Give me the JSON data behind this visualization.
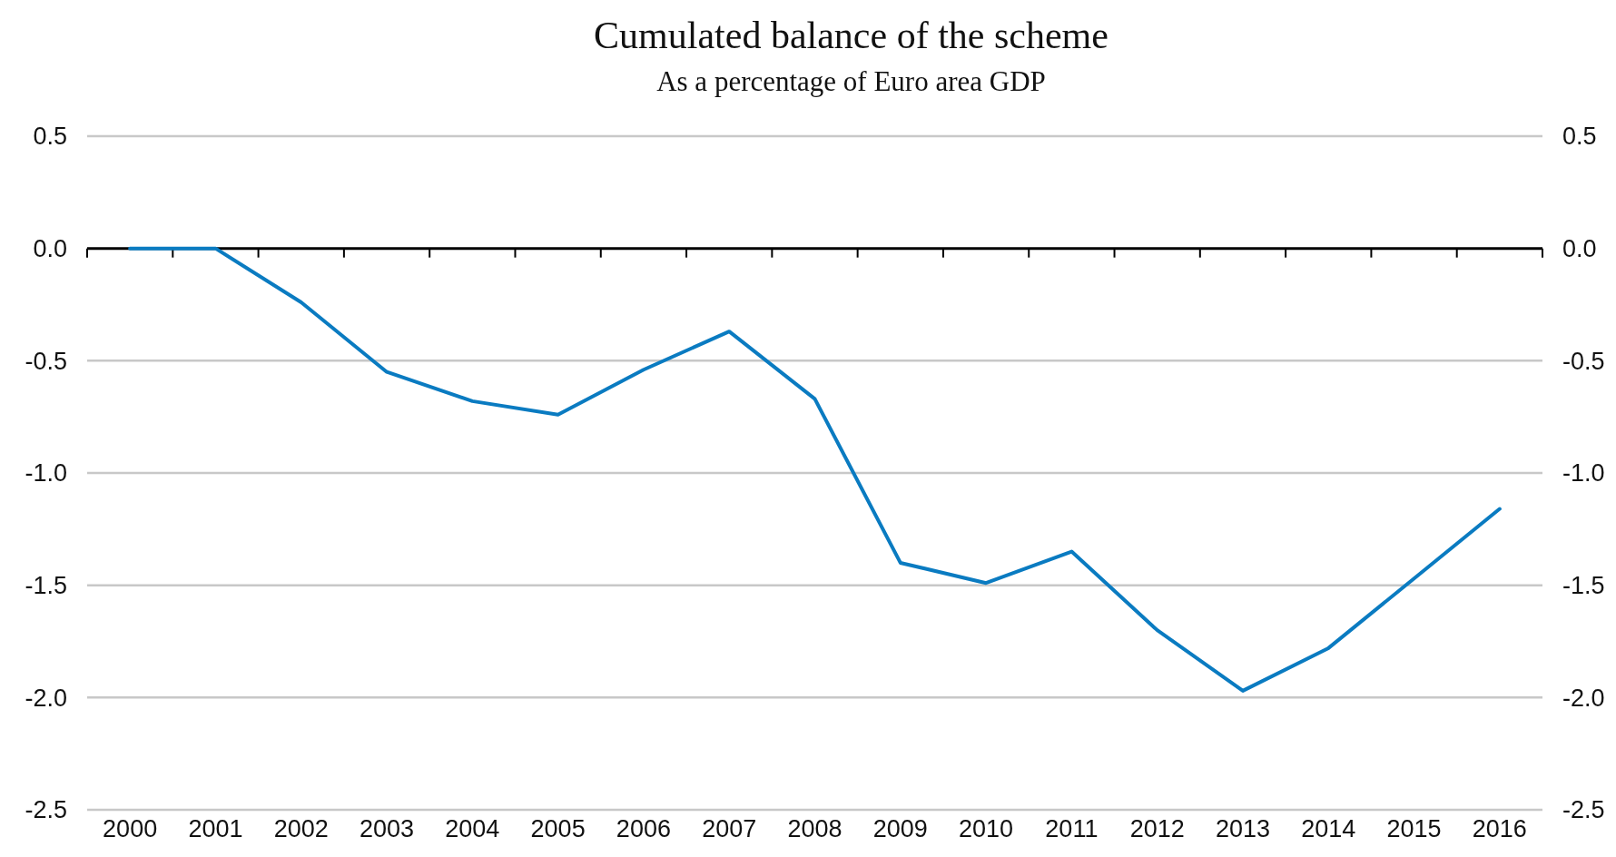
{
  "chart_data": {
    "type": "line",
    "title": "Cumulated balance of the scheme",
    "subtitle": "As a percentage of Euro area GDP",
    "categories": [
      "2000",
      "2001",
      "2002",
      "2003",
      "2004",
      "2005",
      "2006",
      "2007",
      "2008",
      "2009",
      "2010",
      "2011",
      "2012",
      "2013",
      "2014",
      "2015",
      "2016"
    ],
    "series": [
      {
        "color": "#0a7bc1",
        "values": [
          0,
          0,
          -0.24,
          -0.55,
          -0.68,
          -0.74,
          -0.54,
          -0.37,
          -0.67,
          -1.4,
          -1.49,
          -1.35,
          -1.7,
          -1.97,
          -1.78,
          -1.47,
          -1.16
        ]
      }
    ],
    "ylim": [
      -2.5,
      0.5
    ],
    "yticks": [
      {
        "value": -2.5,
        "label": "-2.5"
      },
      {
        "value": -2,
        "label": "-2.0"
      },
      {
        "value": -1.5,
        "label": "-1.5"
      },
      {
        "value": -1,
        "label": "-1.0"
      },
      {
        "value": -0.5,
        "label": "-0.5"
      },
      {
        "value": 0,
        "label": "0.0"
      },
      {
        "value": 0.5,
        "label": "0.5"
      }
    ],
    "y2lim": [
      -2.5,
      0.5
    ],
    "y2ticks": [
      {
        "value": -2.5,
        "label": "-2.5"
      },
      {
        "value": -2,
        "label": "-2.0"
      },
      {
        "value": -1.5,
        "label": "-1.5"
      },
      {
        "value": -1,
        "label": "-1.0"
      },
      {
        "value": -0.5,
        "label": "-0.5"
      },
      {
        "value": 0,
        "label": "0.0"
      },
      {
        "value": 0.5,
        "label": "0.5"
      }
    ],
    "grid": "y",
    "marker": "none",
    "line_style": "solid"
  }
}
